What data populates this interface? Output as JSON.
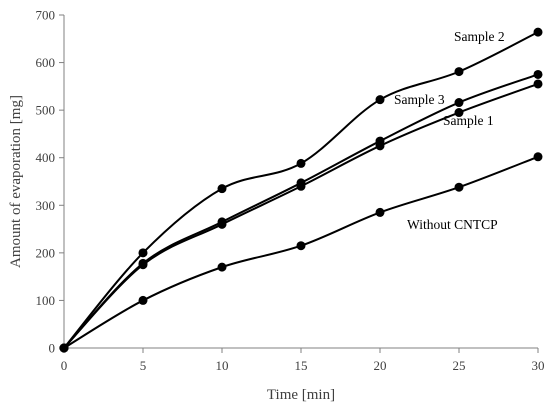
{
  "chart_data": {
    "type": "line",
    "title": "",
    "xlabel": "Time [min]",
    "ylabel": "Amount of evaporation [mg]",
    "xlim": [
      0,
      30
    ],
    "ylim": [
      0,
      700
    ],
    "xticks": [
      0,
      5,
      10,
      15,
      20,
      25,
      30
    ],
    "yticks": [
      0,
      100,
      200,
      300,
      400,
      500,
      600,
      700
    ],
    "grid": false,
    "legend": "none (series labeled inline)",
    "x": [
      0,
      5,
      10,
      15,
      20,
      25,
      30
    ],
    "series": [
      {
        "name": "Sample 2",
        "values": [
          0,
          200,
          335,
          388,
          522,
          581,
          664
        ]
      },
      {
        "name": "Sample 3",
        "values": [
          0,
          178,
          265,
          347,
          435,
          516,
          575
        ]
      },
      {
        "name": "Sample 1",
        "values": [
          0,
          175,
          260,
          340,
          425,
          495,
          555
        ]
      },
      {
        "name": "Without CNTCP",
        "values": [
          0,
          100,
          170,
          215,
          285,
          338,
          402
        ]
      }
    ],
    "color": "#000000"
  }
}
